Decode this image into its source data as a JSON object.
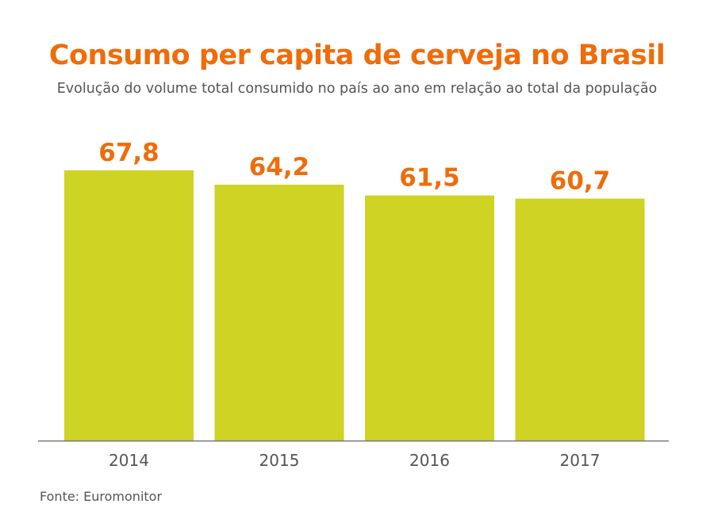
{
  "chart_data": {
    "type": "bar",
    "title": "Consumo per capita de cerveja no Brasil",
    "subtitle": "Evolução do volume total consumido no país ao ano em relação ao total da população",
    "categories": [
      "2014",
      "2015",
      "2016",
      "2017"
    ],
    "values": [
      67.8,
      64.2,
      61.5,
      60.7
    ],
    "data_labels": [
      "67,8",
      "64,2",
      "61,5",
      "60,7"
    ],
    "xlabel": "",
    "ylabel": "",
    "grid": false,
    "source": "Fonte: Euromonitor",
    "colors": {
      "bar": "#ced324",
      "label": "#ef6c0a",
      "title": "#ef6c0a",
      "axis": "#777777"
    }
  }
}
